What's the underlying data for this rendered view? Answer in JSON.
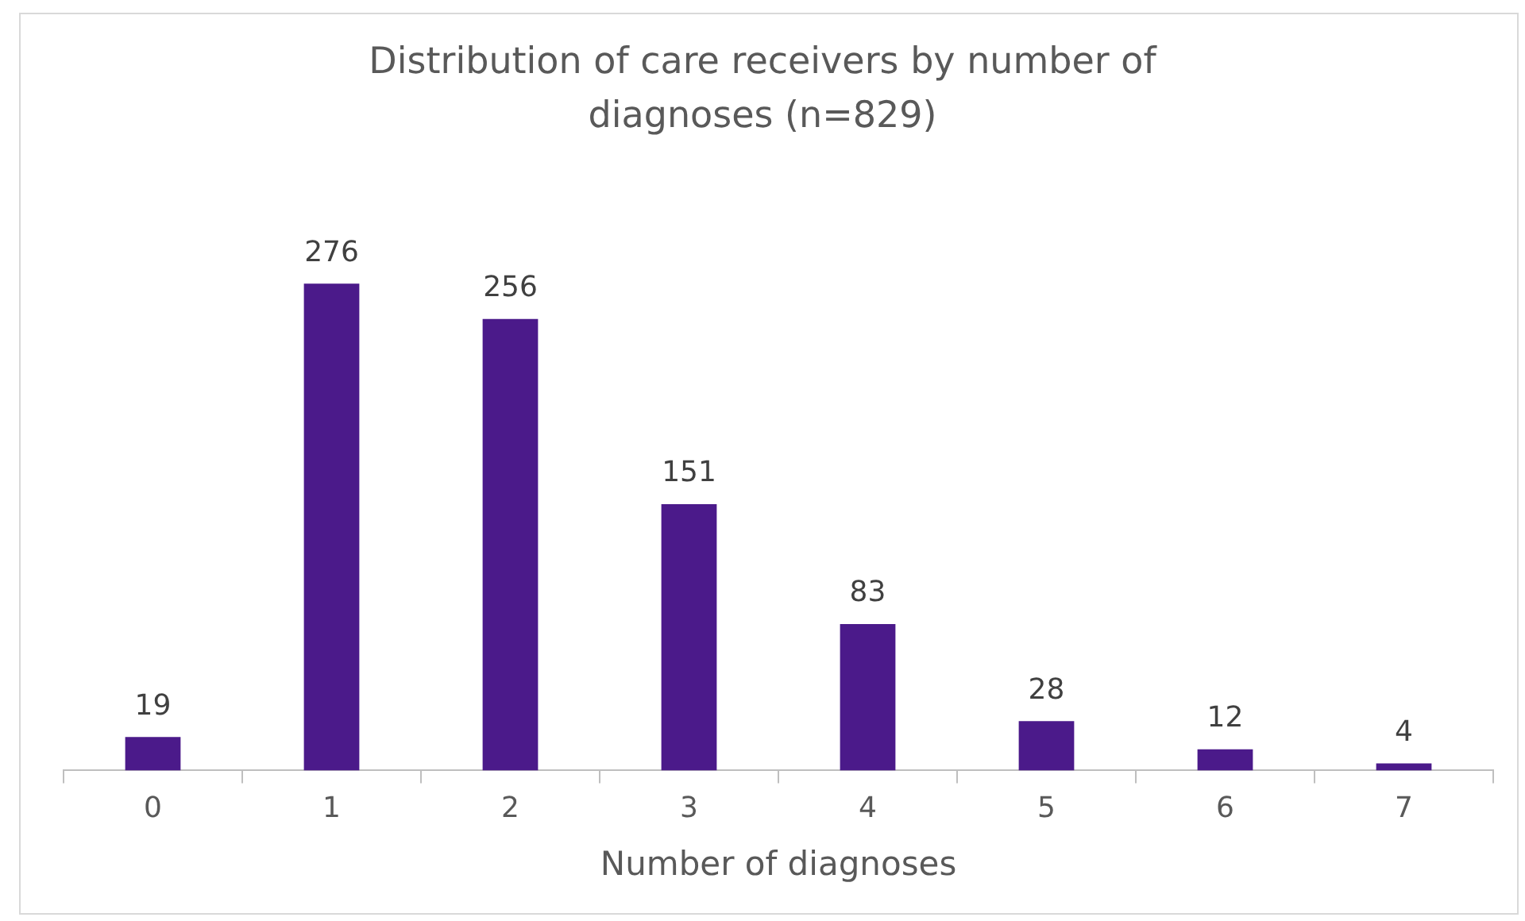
{
  "chart_data": {
    "type": "bar",
    "title": "Distribution of care receivers by number of diagnoses (n=829)",
    "xlabel": "Number of diagnoses",
    "categories": [
      "0",
      "1",
      "2",
      "3",
      "4",
      "5",
      "6",
      "7"
    ],
    "values": [
      19,
      276,
      256,
      151,
      83,
      28,
      12,
      4
    ],
    "color": "#4b1a8a",
    "data_labels": true,
    "grid": false,
    "legend": false
  }
}
